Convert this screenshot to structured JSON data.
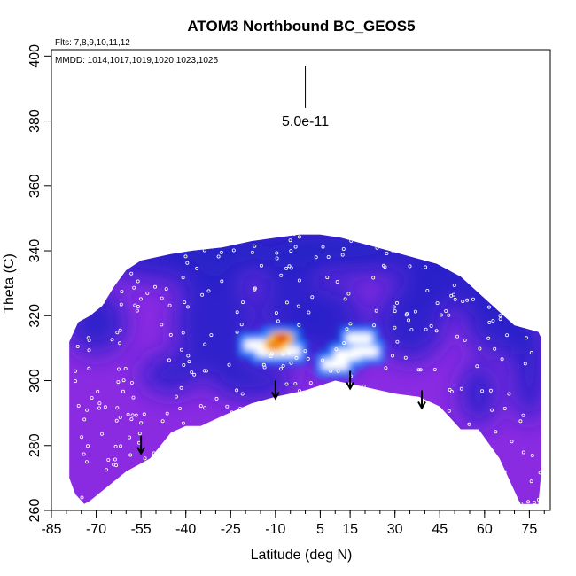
{
  "chart_data": {
    "type": "heatmap",
    "title": "ATOM3 Northbound BC_GEOS5",
    "annotations": {
      "flights": "Flts: 7,8,9,10,11,12",
      "dates": "MMDD: 1014,1017,1019,1020,1023,1025",
      "scale_label": "5.0e-11"
    },
    "xlabel": "Latitude (deg N)",
    "ylabel": "Theta (C)",
    "xlim": [
      -85,
      82
    ],
    "ylim": [
      260,
      402
    ],
    "x_ticks": [
      "-85",
      "-70",
      "-55",
      "-40",
      "-25",
      "-10",
      "5",
      "15",
      "30",
      "45",
      "60",
      "75"
    ],
    "y_ticks": [
      "260",
      "280",
      "300",
      "320",
      "340",
      "360",
      "380",
      "400"
    ],
    "grid": false,
    "legend": "none",
    "colors": {
      "low": "#8a2be2",
      "mid_low": "#2222c8",
      "mid": "#1a8cff",
      "mid_high": "#ffffff",
      "high_low": "#ffd200",
      "high": "#ff7a00",
      "max": "#e81010"
    },
    "domain_outline": {
      "top": [
        [
          -79,
          312
        ],
        [
          -76,
          318
        ],
        [
          -72,
          320
        ],
        [
          -68,
          323
        ],
        [
          -64,
          329
        ],
        [
          -60,
          334
        ],
        [
          -55,
          337
        ],
        [
          -50,
          338
        ],
        [
          -45,
          339
        ],
        [
          -38,
          340
        ],
        [
          -28,
          341
        ],
        [
          -18,
          343
        ],
        [
          -10,
          344
        ],
        [
          -2,
          345
        ],
        [
          5,
          345
        ],
        [
          12,
          344
        ],
        [
          20,
          342
        ],
        [
          28,
          340
        ],
        [
          36,
          338
        ],
        [
          44,
          336
        ],
        [
          52,
          332
        ],
        [
          58,
          327
        ],
        [
          64,
          322
        ],
        [
          70,
          317
        ],
        [
          74,
          316
        ],
        [
          78,
          315
        ],
        [
          79,
          313
        ]
      ],
      "bottom": [
        [
          79,
          272
        ],
        [
          78,
          262
        ],
        [
          72,
          262
        ],
        [
          65,
          276
        ],
        [
          58,
          285
        ],
        [
          55,
          285
        ],
        [
          52,
          285
        ],
        [
          45,
          292
        ],
        [
          38,
          295
        ],
        [
          30,
          296
        ],
        [
          20,
          298
        ],
        [
          10,
          300
        ],
        [
          0,
          297
        ],
        [
          -10,
          295
        ],
        [
          -18,
          293
        ],
        [
          -28,
          289
        ],
        [
          -35,
          286
        ],
        [
          -40,
          286
        ],
        [
          -45,
          284
        ],
        [
          -52,
          276
        ],
        [
          -60,
          272
        ],
        [
          -68,
          266
        ],
        [
          -72,
          263
        ],
        [
          -74,
          262
        ],
        [
          -77,
          265
        ],
        [
          -79,
          270
        ]
      ]
    },
    "hotspots": [
      {
        "lat": -10,
        "theta": 311,
        "rank": 3
      },
      {
        "lat": -8,
        "theta": 313,
        "rank": 3
      },
      {
        "lat": -12,
        "theta": 309,
        "rank": 2
      },
      {
        "lat": -16,
        "theta": 311,
        "rank": 2
      },
      {
        "lat": -6,
        "theta": 309,
        "rank": 2
      },
      {
        "lat": 14,
        "theta": 308,
        "rank": 1
      },
      {
        "lat": 20,
        "theta": 309,
        "rank": 1
      },
      {
        "lat": 18,
        "theta": 313,
        "rank": 1
      },
      {
        "lat": 10,
        "theta": 305,
        "rank": 1
      }
    ],
    "arrows": [
      {
        "lat": -55,
        "theta": 283
      },
      {
        "lat": -10,
        "theta": 300
      },
      {
        "lat": 15,
        "theta": 303
      },
      {
        "lat": 39,
        "theta": 297
      }
    ],
    "scale_bar": {
      "lat": 0,
      "theta_top": 397,
      "theta_bottom": 384
    }
  }
}
